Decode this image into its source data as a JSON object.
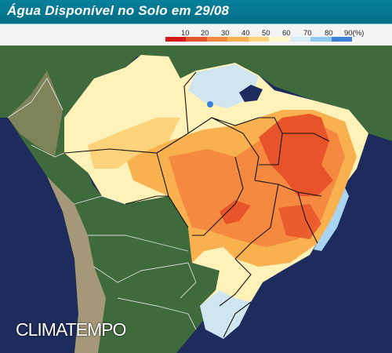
{
  "title": "Água Disponível no Solo em 29/08",
  "legend": {
    "labels": [
      "10",
      "20",
      "30",
      "40",
      "50",
      "60",
      "70",
      "80",
      "90(%)"
    ],
    "colors": [
      "#d7191c",
      "#e8542a",
      "#f5893f",
      "#f8b14e",
      "#fcd27a",
      "#fff6c8",
      "#d8ecf4",
      "#8ec9ee",
      "#3a7fd8"
    ]
  },
  "brand": {
    "logo_text": "CLIMATEMPO"
  },
  "map_colors": {
    "ocean": "#1d2c5c",
    "land": "#3f6a3c",
    "andes": "#a59878"
  }
}
